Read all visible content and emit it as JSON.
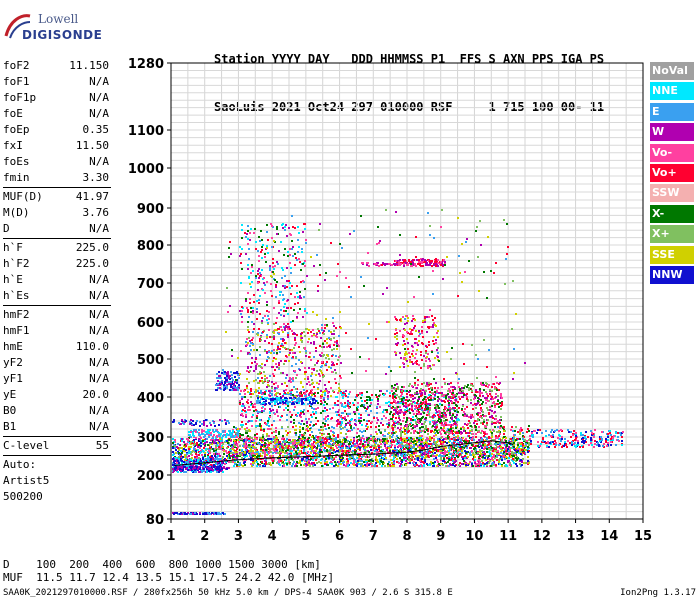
{
  "logo": {
    "top_text": "Lowell",
    "bottom_text": "DIGISONDE"
  },
  "header": {
    "line1": "Station YYYY DAY   DDD HHMMSS P1  FFS S AXN PPS IGA PS",
    "line2": "SaoLuis 2021 Oct24 297 010000 RSF     1 715 100 00- 11"
  },
  "params": {
    "g1": [
      {
        "name": "foF2",
        "value": "11.150"
      },
      {
        "name": "foF1",
        "value": "N/A"
      },
      {
        "name": "foF1p",
        "value": "N/A"
      },
      {
        "name": "foE",
        "value": "N/A"
      },
      {
        "name": "foEp",
        "value": "0.35"
      },
      {
        "name": "fxI",
        "value": "11.50"
      },
      {
        "name": "foEs",
        "value": "N/A"
      },
      {
        "name": "fmin",
        "value": "3.30"
      }
    ],
    "g2": [
      {
        "name": "MUF(D)",
        "value": "41.97"
      },
      {
        "name": "M(D)",
        "value": "3.76"
      },
      {
        "name": "D",
        "value": "N/A"
      }
    ],
    "g3": [
      {
        "name": "h`F",
        "value": "225.0"
      },
      {
        "name": "h`F2",
        "value": "225.0"
      },
      {
        "name": "h`E",
        "value": "N/A"
      },
      {
        "name": "h`Es",
        "value": "N/A"
      }
    ],
    "g4": [
      {
        "name": "hmF2",
        "value": "N/A"
      },
      {
        "name": "hmF1",
        "value": "N/A"
      },
      {
        "name": "hmE",
        "value": "110.0"
      },
      {
        "name": "yF2",
        "value": "N/A"
      },
      {
        "name": "yF1",
        "value": "N/A"
      },
      {
        "name": "yE",
        "value": "20.0"
      },
      {
        "name": "B0",
        "value": "N/A"
      },
      {
        "name": "B1",
        "value": "N/A"
      }
    ],
    "clevel": {
      "name": "C-level",
      "value": "55"
    },
    "auto": [
      "Auto:",
      "Artist5",
      "500200"
    ]
  },
  "legend": [
    {
      "label": "NoVal",
      "color": "#a0a0a0"
    },
    {
      "label": "NNE",
      "color": "#00e8ff"
    },
    {
      "label": "E",
      "color": "#3aa0f0"
    },
    {
      "label": "W",
      "color": "#b000b0"
    },
    {
      "label": "Vo-",
      "color": "#ff40a0"
    },
    {
      "label": "Vo+",
      "color": "#ff0030"
    },
    {
      "label": "SSW",
      "color": "#f4b0b0"
    },
    {
      "label": "X-",
      "color": "#007800"
    },
    {
      "label": "X+",
      "color": "#80c060"
    },
    {
      "label": "SSE",
      "color": "#d0d000"
    },
    {
      "label": "NNW",
      "color": "#1010d0"
    }
  ],
  "bottom": {
    "d_row": "D    100  200  400  600  800 1000 1500 3000 [km]",
    "muf_row": "MUF  11.5 11.7 12.4 13.5 15.1 17.5 24.2 42.0 [MHz]",
    "footer_left": "SAA0K_2021297010000.RSF / 280fx256h 50 kHz 5.0 km / DPS-4 SAA0K 903 / 2.6 S 315.8 E",
    "footer_right": "Ion2Png 1.3.17"
  },
  "chart_data": {
    "type": "scatter",
    "x_label": "",
    "y_label": "",
    "xlim": [
      1,
      15
    ],
    "ylim": [
      80,
      1280
    ],
    "x_ticks": [
      1,
      2,
      3,
      4,
      5,
      6,
      7,
      8,
      9,
      10,
      11,
      12,
      13,
      14,
      15
    ],
    "y_ticks": [
      80,
      200,
      300,
      400,
      500,
      600,
      700,
      800,
      900,
      1000,
      1100,
      1280
    ],
    "grid": true,
    "trace": {
      "description_color": "#000000",
      "points": [
        [
          1.1,
          225
        ],
        [
          2.0,
          232
        ],
        [
          3.0,
          240
        ],
        [
          4.0,
          245
        ],
        [
          5.0,
          248
        ],
        [
          6.0,
          252
        ],
        [
          7.0,
          255
        ],
        [
          8.0,
          260
        ],
        [
          8.5,
          266
        ],
        [
          9.0,
          275
        ],
        [
          9.5,
          280
        ],
        [
          10.0,
          285
        ],
        [
          10.5,
          290
        ],
        [
          11.0,
          285
        ],
        [
          11.15,
          280
        ]
      ]
    },
    "clusters": [
      {
        "xr": [
          1.0,
          11.6
        ],
        "yr": [
          225,
          300
        ],
        "n": 2600,
        "colors": [
          "#ff0030",
          "#ff40a0",
          "#1010d0",
          "#3aa0f0",
          "#00e8ff",
          "#b000b0",
          "#007800",
          "#80c060",
          "#d0d000"
        ]
      },
      {
        "xr": [
          1.0,
          2.5
        ],
        "yr": [
          210,
          245
        ],
        "n": 250,
        "colors": [
          "#1010d0",
          "#b000b0",
          "#3aa0f0",
          "#00e8ff"
        ]
      },
      {
        "xr": [
          2.8,
          11.6
        ],
        "yr": [
          250,
          330
        ],
        "n": 1000,
        "colors": [
          "#ff0030",
          "#ff40a0",
          "#80c060",
          "#d0d000",
          "#007800",
          "#3aa0f0"
        ]
      },
      {
        "xr": [
          3.0,
          9.5
        ],
        "yr": [
          330,
          420
        ],
        "n": 700,
        "colors": [
          "#ff0030",
          "#ff40a0",
          "#b000b0",
          "#3aa0f0",
          "#00e8ff",
          "#007800"
        ]
      },
      {
        "xr": [
          3.2,
          6.0
        ],
        "yr": [
          400,
          600
        ],
        "n": 500,
        "colors": [
          "#ff0030",
          "#ff40a0",
          "#b000b0",
          "#80c060",
          "#3aa0f0",
          "#d0d000"
        ]
      },
      {
        "xr": [
          3.0,
          5.0
        ],
        "yr": [
          600,
          860
        ],
        "n": 260,
        "colors": [
          "#ff40a0",
          "#b000b0",
          "#00e8ff",
          "#3aa0f0",
          "#007800",
          "#ff0030"
        ]
      },
      {
        "xr": [
          2.3,
          3.0
        ],
        "yr": [
          420,
          470
        ],
        "n": 120,
        "colors": [
          "#1010d0",
          "#b000b0",
          "#3aa0f0"
        ]
      },
      {
        "xr": [
          3.5,
          5.3
        ],
        "yr": [
          385,
          400
        ],
        "n": 140,
        "colors": [
          "#3aa0f0",
          "#00e8ff",
          "#1010d0"
        ]
      },
      {
        "xr": [
          7.5,
          10.8
        ],
        "yr": [
          310,
          440
        ],
        "n": 700,
        "colors": [
          "#ff0030",
          "#ff40a0",
          "#b000b0",
          "#007800",
          "#80c060"
        ]
      },
      {
        "xr": [
          7.6,
          8.9
        ],
        "yr": [
          480,
          620
        ],
        "n": 160,
        "colors": [
          "#ff0030",
          "#ff40a0",
          "#b000b0",
          "#d0d000"
        ]
      },
      {
        "xr": [
          7.6,
          9.1
        ],
        "yr": [
          748,
          765
        ],
        "n": 140,
        "colors": [
          "#b000b0",
          "#ff40a0",
          "#ff0030"
        ]
      },
      {
        "xr": [
          6.6,
          7.9
        ],
        "yr": [
          748,
          755
        ],
        "n": 40,
        "colors": [
          "#b000b0",
          "#ff40a0"
        ]
      },
      {
        "xr": [
          11.6,
          14.4
        ],
        "yr": [
          275,
          320
        ],
        "n": 220,
        "colors": [
          "#ff0030",
          "#ff40a0",
          "#3aa0f0",
          "#00e8ff",
          "#1010d0"
        ]
      },
      {
        "xr": [
          1.0,
          2.7
        ],
        "yr": [
          216,
          224
        ],
        "n": 90,
        "colors": [
          "#1010d0",
          "#b000b0"
        ]
      },
      {
        "xr": [
          1.0,
          2.7
        ],
        "yr": [
          330,
          345
        ],
        "n": 60,
        "colors": [
          "#1010d0",
          "#b000b0",
          "#3aa0f0"
        ]
      },
      {
        "xr": [
          1.0,
          2.6
        ],
        "yr": [
          95,
          100
        ],
        "n": 90,
        "colors": [
          "#1010d0",
          "#3aa0f0",
          "#b000b0"
        ]
      },
      {
        "xr": [
          1.5,
          3.0
        ],
        "yr": [
          300,
          320
        ],
        "n": 120,
        "colors": [
          "#00e8ff",
          "#3aa0f0",
          "#ff40a0"
        ]
      },
      {
        "xr": [
          2.5,
          11.5
        ],
        "yr": [
          440,
          900
        ],
        "n": 220,
        "colors": [
          "#ff0030",
          "#ff40a0",
          "#b000b0",
          "#3aa0f0",
          "#80c060",
          "#d0d000",
          "#007800"
        ]
      }
    ]
  }
}
